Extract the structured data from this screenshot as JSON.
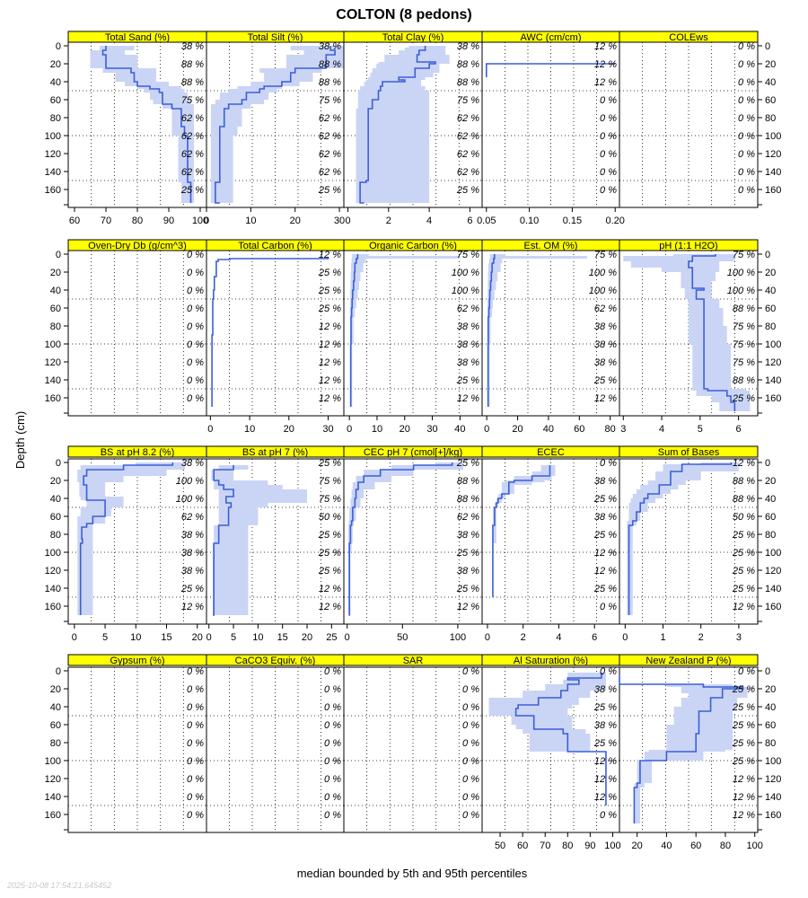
{
  "title": "COLTON (8 pedons)",
  "ylabel": "Depth (cm)",
  "xlabel": "median bounded by 5th and 95th percentiles",
  "timestamp": "2025-10-08 17:54:21.645452",
  "colors": {
    "strip": "#ffff00",
    "band": "#cad4f5",
    "line": "#3a5fd8",
    "grid": "#000000"
  },
  "depth_ticks": [
    0,
    20,
    40,
    60,
    80,
    100,
    120,
    140,
    160
  ],
  "chart_data": [
    {
      "type": "line",
      "title": "Total Sand (%)",
      "xlim": [
        58,
        102
      ],
      "xticks": [
        60,
        70,
        80,
        90,
        100
      ],
      "pct": [
        "38 %",
        "88 %",
        "88 %",
        "75 %",
        "62 %",
        "62 %",
        "62 %",
        "62 %",
        "25 %"
      ],
      "depth": [
        0,
        2,
        5,
        10,
        20,
        25,
        30,
        40,
        45,
        48,
        52,
        60,
        65,
        70,
        90,
        100,
        150,
        152,
        175
      ],
      "median": [
        70,
        70,
        69,
        70,
        70,
        78,
        79,
        80,
        84,
        87,
        88,
        88,
        91,
        94,
        95,
        96,
        96,
        97,
        97
      ],
      "low": [
        68,
        68,
        65,
        65,
        65,
        69,
        73,
        76,
        80,
        82,
        84,
        85,
        88,
        91,
        91,
        93,
        93,
        94,
        94
      ],
      "high": [
        79,
        79,
        76,
        80,
        80,
        86,
        86,
        90,
        94,
        95,
        96,
        97,
        98,
        98,
        98,
        98,
        98,
        98,
        98
      ]
    },
    {
      "type": "line",
      "title": "Total Silt (%)",
      "xlim": [
        0,
        31
      ],
      "xticks": [
        0,
        10,
        20,
        30
      ],
      "pct": [
        "38 %",
        "88 %",
        "88 %",
        "75 %",
        "62 %",
        "62 %",
        "62 %",
        "62 %",
        "25 %"
      ],
      "depth": [
        0,
        2,
        5,
        10,
        20,
        25,
        30,
        40,
        45,
        48,
        52,
        60,
        65,
        70,
        90,
        100,
        150,
        152,
        175
      ],
      "median": [
        28,
        28,
        29,
        27,
        27,
        20,
        19,
        17,
        13,
        12,
        9,
        8,
        5,
        4,
        3,
        3,
        3,
        2,
        3
      ],
      "low": [
        19,
        19,
        22,
        18,
        18,
        12,
        13,
        10,
        7,
        5,
        3,
        2,
        1,
        1,
        1,
        1,
        1,
        1,
        1
      ],
      "high": [
        31,
        31,
        31,
        31,
        31,
        26,
        24,
        21,
        17,
        16,
        14,
        13,
        10,
        8,
        7,
        6,
        6,
        6,
        5
      ]
    },
    {
      "type": "line",
      "title": "Total Clay (%)",
      "xlim": [
        -0.2,
        6.6
      ],
      "xticks": [
        0,
        2,
        4,
        6
      ],
      "pct": [
        "38 %",
        "88 %",
        "88 %",
        "75 %",
        "62 %",
        "62 %",
        "62 %",
        "62 %",
        "25 %"
      ],
      "depth": [
        0,
        2,
        5,
        10,
        18,
        20,
        25,
        30,
        35,
        38,
        40,
        45,
        50,
        60,
        70,
        150,
        152,
        155,
        175
      ],
      "median": [
        3.8,
        3.8,
        3.5,
        3.4,
        4.3,
        4.0,
        3.3,
        3.3,
        2.5,
        2.8,
        1.7,
        1.6,
        1.5,
        1.2,
        1.0,
        0.9,
        0.6,
        0.6,
        0.8
      ],
      "low": [
        3.0,
        2.8,
        2.5,
        1.8,
        1.5,
        1.4,
        1.2,
        1.1,
        1.0,
        0.9,
        0.8,
        0.6,
        0.5,
        0.5,
        0.4,
        0.4,
        0.4,
        0.4,
        0.5
      ],
      "high": [
        4.8,
        4.8,
        4.8,
        5.0,
        5.0,
        4.5,
        4.5,
        4.2,
        3.8,
        3.6,
        3.6,
        3.8,
        4.0,
        4.0,
        4.0,
        4.0,
        4.0,
        4.0,
        4.0
      ]
    },
    {
      "type": "line",
      "title": "AWC (cm/cm)",
      "xlim": [
        0.045,
        0.205
      ],
      "xticks": [
        0.05,
        0.1,
        0.15,
        0.2
      ],
      "xtick_labels": [
        "0.05",
        "0.10",
        "0.15",
        "0.20"
      ],
      "pct": [
        "12 %",
        "12 %",
        "12 %",
        "0 %",
        "0 %",
        "0 %",
        "0 %",
        "0 %",
        "0 %"
      ],
      "depth": [
        20,
        20,
        28,
        28,
        35
      ],
      "median": [
        0.2,
        0.05,
        0.05,
        0.05,
        0.05
      ],
      "low": [
        0.2,
        0.05,
        0.05,
        0.05,
        0.05
      ],
      "high": [
        0.2,
        0.05,
        0.05,
        0.05,
        0.05
      ]
    },
    {
      "type": "line",
      "title": "COLEws",
      "xlim": [
        0,
        1
      ],
      "xticks": [],
      "pct": [
        "0 %",
        "0 %",
        "0 %",
        "0 %",
        "0 %",
        "0 %",
        "0 %",
        "0 %",
        "0 %"
      ],
      "depth": [],
      "median": [],
      "low": [],
      "high": []
    },
    {
      "type": "line",
      "title": "Oven-Dry Db (g/cm^3)",
      "xlim": [
        0,
        1
      ],
      "xticks": [],
      "pct": [
        "0 %",
        "0 %",
        "0 %",
        "0 %",
        "0 %",
        "0 %",
        "0 %",
        "0 %",
        "0 %"
      ],
      "depth": [],
      "median": [],
      "low": [],
      "high": []
    },
    {
      "type": "line",
      "title": "Total Carbon (%)",
      "xlim": [
        -1,
        34
      ],
      "xticks": [
        0,
        10,
        20,
        30
      ],
      "pct": [
        "12 %",
        "25 %",
        "25 %",
        "25 %",
        "12 %",
        "12 %",
        "12 %",
        "12 %",
        "12 %"
      ],
      "depth": [
        3,
        5,
        6,
        8,
        20,
        25,
        40,
        50,
        90,
        100,
        170
      ],
      "median": [
        30,
        5,
        2,
        1.5,
        1.5,
        1,
        0.8,
        0.6,
        0.4,
        0.4,
        0.4
      ],
      "low": [
        30,
        5,
        2,
        1.5,
        1.5,
        1,
        0.8,
        0.6,
        0.4,
        0.4,
        0.4
      ],
      "high": [
        30,
        5,
        2,
        1.5,
        1.5,
        1,
        0.8,
        0.6,
        0.4,
        0.4,
        0.4
      ]
    },
    {
      "type": "line",
      "title": "Organic Carbon (%)",
      "xlim": [
        -2,
        48
      ],
      "xticks": [
        0,
        10,
        20,
        30,
        40
      ],
      "pct": [
        "75 %",
        "100 %",
        "100 %",
        "62 %",
        "38 %",
        "38 %",
        "38 %",
        "25 %",
        "12 %"
      ],
      "depth": [
        0,
        2,
        5,
        10,
        20,
        30,
        40,
        50,
        60,
        70,
        100,
        170
      ],
      "median": [
        3,
        3,
        2.5,
        2,
        1.8,
        1.5,
        1.2,
        1,
        0.8,
        0.6,
        0.5,
        0.5
      ],
      "low": [
        1,
        1,
        0.8,
        0.6,
        0.5,
        0.4,
        0.3,
        0.3,
        0.2,
        0.2,
        0.2,
        0.2
      ],
      "high": [
        7,
        40,
        6,
        5,
        4,
        3.5,
        3,
        2.5,
        2,
        1.5,
        1,
        1
      ]
    },
    {
      "type": "line",
      "title": "Est. OM (%)",
      "xlim": [
        -3,
        86
      ],
      "xticks": [
        0,
        20,
        40,
        60,
        80
      ],
      "pct": [
        "75 %",
        "100 %",
        "100 %",
        "62 %",
        "38 %",
        "38 %",
        "38 %",
        "25 %",
        "12 %"
      ],
      "depth": [
        0,
        2,
        5,
        10,
        20,
        30,
        40,
        50,
        60,
        70,
        100,
        170
      ],
      "median": [
        5,
        5,
        4.5,
        3.5,
        3,
        2.5,
        2,
        1.8,
        1.4,
        1,
        0.9,
        0.9
      ],
      "low": [
        2,
        2,
        1.5,
        1,
        0.8,
        0.7,
        0.6,
        0.5,
        0.4,
        0.3,
        0.3,
        0.3
      ],
      "high": [
        12,
        65,
        10,
        9,
        7,
        6,
        5,
        4,
        3.5,
        2.5,
        2,
        2
      ]
    },
    {
      "type": "line",
      "title": "pH (1:1 H2O)",
      "xlim": [
        2.9,
        6.5
      ],
      "xticks": [
        3,
        4,
        5,
        6
      ],
      "pct": [
        "75 %",
        "100 %",
        "100 %",
        "88 %",
        "75 %",
        "75 %",
        "75 %",
        "88 %",
        "25 %"
      ],
      "depth": [
        0,
        2,
        8,
        15,
        20,
        30,
        38,
        40,
        50,
        60,
        80,
        100,
        150,
        152,
        158,
        165,
        175
      ],
      "median": [
        5.4,
        4.8,
        4.7,
        4.8,
        4.8,
        4.8,
        5.1,
        4.9,
        5.1,
        5.1,
        5.1,
        5.1,
        5.2,
        5.7,
        5.8,
        5.9,
        5.9
      ],
      "low": [
        4.3,
        3.0,
        3.2,
        4.0,
        4.5,
        4.5,
        4.6,
        4.6,
        4.7,
        4.7,
        4.7,
        4.8,
        4.8,
        4.9,
        5.3,
        5.5,
        5.5
      ],
      "high": [
        5.9,
        5.9,
        5.5,
        5.5,
        5.4,
        5.3,
        5.3,
        5.3,
        5.5,
        5.6,
        5.7,
        5.8,
        6.2,
        6.3,
        6.3,
        6.3,
        6.3
      ]
    },
    {
      "type": "line",
      "title": "BS at pH 8.2 (%)",
      "xlim": [
        -1,
        21.5
      ],
      "xticks": [
        0,
        5,
        10,
        15,
        20
      ],
      "pct": [
        "38 %",
        "100 %",
        "100 %",
        "62 %",
        "38 %",
        "38 %",
        "38 %",
        "25 %",
        "12 %"
      ],
      "depth": [
        0,
        3,
        8,
        15,
        22,
        25,
        38,
        42,
        50,
        60,
        68,
        72,
        85,
        90,
        170
      ],
      "median": [
        16,
        8,
        2,
        1.5,
        1.5,
        2,
        2,
        5,
        5,
        3,
        2,
        1.2,
        1.3,
        1,
        1
      ],
      "low": [
        10,
        1,
        0.5,
        0.5,
        0.8,
        0.8,
        1,
        2,
        1,
        0.5,
        0.5,
        0.5,
        0.5,
        0.5,
        0.5
      ],
      "high": [
        18,
        18,
        15,
        8,
        5,
        5,
        8,
        8,
        6,
        5,
        3,
        3,
        3,
        3,
        3
      ]
    },
    {
      "type": "line",
      "title": "BS at pH 7 (%)",
      "xlim": [
        -0.5,
        27.5
      ],
      "xticks": [
        0,
        5,
        10,
        15,
        20,
        25
      ],
      "pct": [
        "25 %",
        "75 %",
        "75 %",
        "50 %",
        "25 %",
        "25 %",
        "25 %",
        "12 %",
        "12 %"
      ],
      "depth": [
        3,
        8,
        15,
        20,
        25,
        30,
        38,
        45,
        50,
        70,
        90,
        170
      ],
      "median": [
        5,
        1,
        1,
        2,
        3,
        5,
        3.5,
        4.5,
        4,
        2,
        1,
        0.8
      ],
      "low": [
        2,
        0.5,
        0.5,
        1,
        1,
        2,
        2,
        2,
        2,
        1,
        0.8,
        0.8
      ],
      "high": [
        8,
        5,
        5,
        12,
        15,
        20,
        20,
        12,
        10,
        8,
        8,
        4
      ]
    },
    {
      "type": "line",
      "title": "CEC pH 7 (cmol[+]/kg)",
      "xlim": [
        -3,
        122
      ],
      "xticks": [
        0,
        50,
        100
      ],
      "pct": [
        "25 %",
        "88 %",
        "88 %",
        "62 %",
        "38 %",
        "25 %",
        "38 %",
        "25 %",
        "12 %"
      ],
      "depth": [
        0,
        3,
        8,
        15,
        22,
        30,
        40,
        50,
        65,
        70,
        90,
        100,
        170
      ],
      "median": [
        95,
        60,
        30,
        15,
        10,
        8,
        7,
        5,
        4,
        3,
        2,
        2,
        1.5
      ],
      "low": [
        80,
        40,
        15,
        8,
        5,
        4,
        3,
        2,
        1.5,
        1,
        1,
        1,
        1
      ],
      "high": [
        105,
        105,
        60,
        40,
        25,
        15,
        12,
        8,
        6,
        5,
        4,
        3,
        3
      ]
    },
    {
      "type": "line",
      "title": "ECEC",
      "xlim": [
        -0.3,
        7.4
      ],
      "xticks": [
        0,
        2,
        4,
        6
      ],
      "pct": [
        "0 %",
        "38 %",
        "25 %",
        "38 %",
        "25 %",
        "12 %",
        "12 %",
        "25 %",
        "0 %"
      ],
      "depth": [
        3,
        10,
        15,
        20,
        22,
        25,
        35,
        40,
        45,
        50,
        70,
        90,
        150
      ],
      "median": [
        3.5,
        3.5,
        2.5,
        1.5,
        1.2,
        1.2,
        0.8,
        0.6,
        0.5,
        0.4,
        0.3,
        0.3,
        0.3
      ],
      "low": [
        3.0,
        2.5,
        1.5,
        1.0,
        0.8,
        0.8,
        0.6,
        0.5,
        0.4,
        0.3,
        0.3,
        0.3,
        0.3
      ],
      "high": [
        3.8,
        3.8,
        3.6,
        3.2,
        2.5,
        1.5,
        1.0,
        0.8,
        0.6,
        0.5,
        0.5,
        0.3,
        0.3
      ]
    },
    {
      "type": "line",
      "title": "Sum of Bases",
      "xlim": [
        -0.15,
        3.5
      ],
      "xticks": [
        0,
        1,
        2,
        3
      ],
      "pct": [
        "12 %",
        "88 %",
        "88 %",
        "50 %",
        "25 %",
        "25 %",
        "25 %",
        "25 %",
        "12 %"
      ],
      "depth": [
        0,
        2,
        10,
        20,
        25,
        30,
        35,
        40,
        45,
        55,
        65,
        70,
        100,
        170
      ],
      "median": [
        2.8,
        1.5,
        1.2,
        1.2,
        0.9,
        0.9,
        0.6,
        0.5,
        0.4,
        0.3,
        0.2,
        0.1,
        0.1,
        0.1
      ],
      "low": [
        2.0,
        1.0,
        0.8,
        0.6,
        0.4,
        0.3,
        0.2,
        0.15,
        0.1,
        0.1,
        0.05,
        0.05,
        0.05,
        0.05
      ],
      "high": [
        3.0,
        3.0,
        2.0,
        1.6,
        1.4,
        1.2,
        1.0,
        0.8,
        0.6,
        0.4,
        0.3,
        0.2,
        0.2,
        0.2
      ]
    },
    {
      "type": "line",
      "title": "Gypsum (%)",
      "xlim": [
        0,
        1
      ],
      "xticks": [],
      "pct": [
        "0 %",
        "0 %",
        "0 %",
        "0 %",
        "0 %",
        "0 %",
        "0 %",
        "0 %",
        "0 %"
      ],
      "depth": [],
      "median": [],
      "low": [],
      "high": []
    },
    {
      "type": "line",
      "title": "CaCO3 Equiv. (%)",
      "xlim": [
        0,
        1
      ],
      "xticks": [],
      "pct": [
        "0 %",
        "0 %",
        "0 %",
        "0 %",
        "0 %",
        "0 %",
        "0 %",
        "0 %",
        "0 %"
      ],
      "depth": [],
      "median": [],
      "low": [],
      "high": []
    },
    {
      "type": "line",
      "title": "SAR",
      "xlim": [
        0,
        1
      ],
      "xticks": [],
      "pct": [
        "0 %",
        "0 %",
        "0 %",
        "0 %",
        "0 %",
        "0 %",
        "0 %",
        "0 %",
        "0 %"
      ],
      "depth": [],
      "median": [],
      "low": [],
      "high": []
    },
    {
      "type": "line",
      "title": "Al Saturation (%)",
      "xlim": [
        42,
        103
      ],
      "xticks": [
        50,
        60,
        70,
        80,
        90,
        100
      ],
      "pct": [
        "0 %",
        "38 %",
        "25 %",
        "38 %",
        "25 %",
        "12 %",
        "12 %",
        "12 %",
        "0 %"
      ],
      "depth": [
        2,
        8,
        10,
        15,
        22,
        30,
        38,
        42,
        50,
        60,
        65,
        70,
        90,
        150
      ],
      "median": [
        95,
        80,
        85,
        80,
        77,
        67,
        58,
        57,
        65,
        65,
        78,
        80,
        97,
        97
      ],
      "low": [
        80,
        80,
        78,
        70,
        60,
        45,
        45,
        45,
        55,
        57,
        60,
        63,
        97,
        97
      ],
      "high": [
        97,
        97,
        97,
        97,
        90,
        85,
        82,
        80,
        82,
        82,
        88,
        90,
        97,
        97
      ]
    },
    {
      "type": "line",
      "title": "New Zealand P (%)",
      "xlim": [
        8,
        102
      ],
      "xticks": [
        20,
        40,
        60,
        80,
        100
      ],
      "pct": [
        "0 %",
        "25 %",
        "25 %",
        "25 %",
        "25 %",
        "25 %",
        "12 %",
        "12 %",
        "12 %"
      ],
      "depth": [
        5,
        15,
        18,
        20,
        25,
        30,
        40,
        45,
        60,
        70,
        88,
        90,
        100,
        125,
        130,
        170
      ],
      "median": [
        8,
        65,
        92,
        78,
        78,
        70,
        70,
        62,
        62,
        60,
        60,
        40,
        22,
        20,
        18,
        18
      ],
      "low": [
        8,
        40,
        50,
        50,
        55,
        50,
        45,
        45,
        40,
        40,
        28,
        25,
        20,
        18,
        18,
        18
      ],
      "high": [
        8,
        85,
        100,
        95,
        95,
        88,
        88,
        85,
        85,
        85,
        80,
        65,
        30,
        25,
        22,
        22
      ]
    }
  ]
}
